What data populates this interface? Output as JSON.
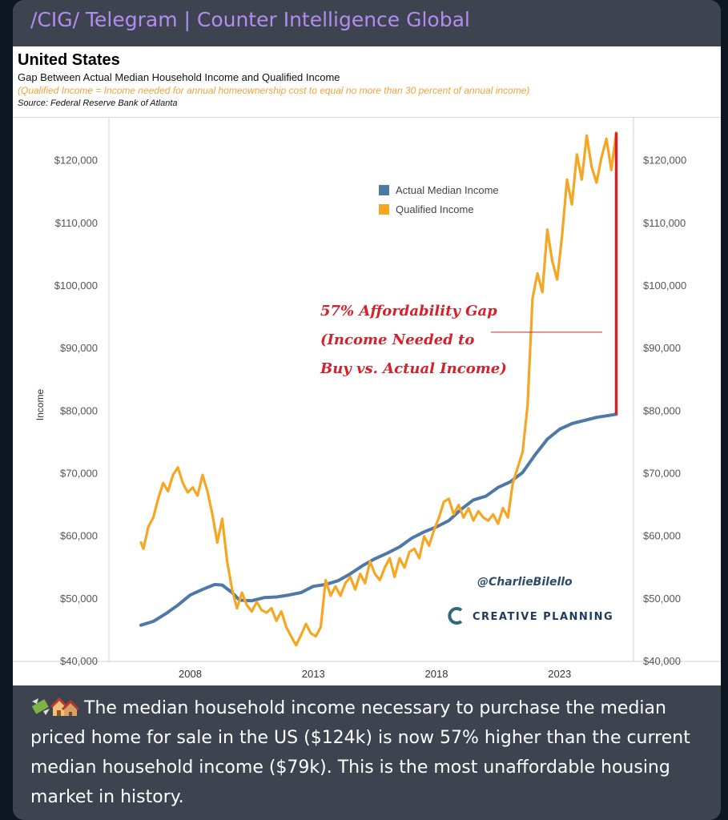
{
  "channel": {
    "name": "/CIG/ Telegram | Counter Intelligence Global"
  },
  "chart_header": {
    "title": "United States",
    "subtitle": "Gap Between Actual Median Household Income and Qualified Income",
    "definition": "(Qualified Income = Income needed for annual homeownership cost to equal no more than 30 percent of annual income)",
    "source": "Source: Federal Reserve Bank of Atlanta"
  },
  "annotation": {
    "lines": [
      "57% Affordability Gap",
      "(Income Needed to",
      "Buy vs. Actual Income)"
    ],
    "color": "#d6202a"
  },
  "watermark": {
    "handle": "@CharlieBilello",
    "brand": "CREATIVE PLANNING"
  },
  "caption": {
    "emoji_icons": [
      "money-with-wings-icon",
      "houses-icon"
    ],
    "text": "The median household income necessary to purchase the median priced home for sale in the US ($124k) is now 57% higher than the current median household income ($79k). This is the most unaffordable housing market in history."
  },
  "chart_data": {
    "type": "line",
    "ylabel": "Income",
    "xlabel": "",
    "ylim": [
      40000,
      127000
    ],
    "xlim": [
      2004.7,
      2026.0
    ],
    "y_ticks": [
      40000,
      50000,
      60000,
      70000,
      80000,
      90000,
      100000,
      110000,
      120000
    ],
    "y_tick_labels": [
      "$40,000",
      "$50,000",
      "$60,000",
      "$70,000",
      "$80,000",
      "$90,000",
      "$100,000",
      "$110,000",
      "$120,000"
    ],
    "x_ticks": [
      2008,
      2013,
      2018,
      2023
    ],
    "x_tick_labels": [
      "2008",
      "2013",
      "2018",
      "2023"
    ],
    "legend_position": "top-center",
    "grid": false,
    "series": [
      {
        "name": "Actual Median Income",
        "color": "#4e79a7",
        "points": [
          [
            2006.0,
            45800
          ],
          [
            2006.5,
            46400
          ],
          [
            2007.0,
            47600
          ],
          [
            2007.5,
            49000
          ],
          [
            2008.0,
            50600
          ],
          [
            2008.5,
            51500
          ],
          [
            2009.0,
            52300
          ],
          [
            2009.3,
            52200
          ],
          [
            2009.7,
            51000
          ],
          [
            2010.0,
            49800
          ],
          [
            2010.5,
            49700
          ],
          [
            2011.0,
            50200
          ],
          [
            2011.5,
            50300
          ],
          [
            2012.0,
            50600
          ],
          [
            2012.5,
            51000
          ],
          [
            2013.0,
            52000
          ],
          [
            2013.5,
            52300
          ],
          [
            2014.0,
            52900
          ],
          [
            2014.5,
            54000
          ],
          [
            2015.0,
            55300
          ],
          [
            2015.5,
            56400
          ],
          [
            2016.0,
            57300
          ],
          [
            2016.5,
            58300
          ],
          [
            2017.0,
            59700
          ],
          [
            2017.5,
            60700
          ],
          [
            2018.0,
            61500
          ],
          [
            2018.5,
            62500
          ],
          [
            2019.0,
            64300
          ],
          [
            2019.5,
            65800
          ],
          [
            2020.0,
            66400
          ],
          [
            2020.5,
            67800
          ],
          [
            2021.0,
            68700
          ],
          [
            2021.5,
            70200
          ],
          [
            2022.0,
            73000
          ],
          [
            2022.5,
            75500
          ],
          [
            2023.0,
            77100
          ],
          [
            2023.5,
            78000
          ],
          [
            2024.0,
            78500
          ],
          [
            2024.5,
            79000
          ],
          [
            2025.0,
            79300
          ],
          [
            2025.3,
            79500
          ]
        ]
      },
      {
        "name": "Qualified Income",
        "color": "#f5a623",
        "points": [
          [
            2006.0,
            59000
          ],
          [
            2006.1,
            58000
          ],
          [
            2006.3,
            61500
          ],
          [
            2006.5,
            63000
          ],
          [
            2006.7,
            66000
          ],
          [
            2006.9,
            68500
          ],
          [
            2007.1,
            67200
          ],
          [
            2007.3,
            69800
          ],
          [
            2007.5,
            71000
          ],
          [
            2007.7,
            68500
          ],
          [
            2007.9,
            67000
          ],
          [
            2008.1,
            67800
          ],
          [
            2008.3,
            66500
          ],
          [
            2008.5,
            69800
          ],
          [
            2008.7,
            67200
          ],
          [
            2008.9,
            63500
          ],
          [
            2009.1,
            59000
          ],
          [
            2009.3,
            62800
          ],
          [
            2009.5,
            56000
          ],
          [
            2009.7,
            51500
          ],
          [
            2009.9,
            48500
          ],
          [
            2010.1,
            51000
          ],
          [
            2010.3,
            49000
          ],
          [
            2010.5,
            48000
          ],
          [
            2010.7,
            49500
          ],
          [
            2010.9,
            48200
          ],
          [
            2011.1,
            47800
          ],
          [
            2011.3,
            48500
          ],
          [
            2011.5,
            46500
          ],
          [
            2011.7,
            48000
          ],
          [
            2011.9,
            45500
          ],
          [
            2012.1,
            44000
          ],
          [
            2012.3,
            42600
          ],
          [
            2012.5,
            44200
          ],
          [
            2012.7,
            46000
          ],
          [
            2012.9,
            44500
          ],
          [
            2013.1,
            44000
          ],
          [
            2013.3,
            45500
          ],
          [
            2013.5,
            53000
          ],
          [
            2013.7,
            50500
          ],
          [
            2013.9,
            52000
          ],
          [
            2014.1,
            50500
          ],
          [
            2014.3,
            52500
          ],
          [
            2014.5,
            53500
          ],
          [
            2014.7,
            51500
          ],
          [
            2014.9,
            54000
          ],
          [
            2015.1,
            52500
          ],
          [
            2015.3,
            56000
          ],
          [
            2015.5,
            54000
          ],
          [
            2015.7,
            53000
          ],
          [
            2015.9,
            55000
          ],
          [
            2016.1,
            56500
          ],
          [
            2016.3,
            53500
          ],
          [
            2016.5,
            56500
          ],
          [
            2016.7,
            55000
          ],
          [
            2016.9,
            57500
          ],
          [
            2017.1,
            58000
          ],
          [
            2017.3,
            56500
          ],
          [
            2017.5,
            60000
          ],
          [
            2017.7,
            58500
          ],
          [
            2017.9,
            61000
          ],
          [
            2018.1,
            63000
          ],
          [
            2018.3,
            65500
          ],
          [
            2018.5,
            66000
          ],
          [
            2018.7,
            63500
          ],
          [
            2018.9,
            65000
          ],
          [
            2019.1,
            63000
          ],
          [
            2019.3,
            64500
          ],
          [
            2019.5,
            62500
          ],
          [
            2019.7,
            64000
          ],
          [
            2019.9,
            63000
          ],
          [
            2020.1,
            62500
          ],
          [
            2020.3,
            63500
          ],
          [
            2020.5,
            62000
          ],
          [
            2020.7,
            64500
          ],
          [
            2020.9,
            63000
          ],
          [
            2021.1,
            68500
          ],
          [
            2021.3,
            71000
          ],
          [
            2021.5,
            73500
          ],
          [
            2021.7,
            81000
          ],
          [
            2021.9,
            98000
          ],
          [
            2022.1,
            102000
          ],
          [
            2022.3,
            99000
          ],
          [
            2022.5,
            109000
          ],
          [
            2022.7,
            104000
          ],
          [
            2022.9,
            101000
          ],
          [
            2023.1,
            108000
          ],
          [
            2023.3,
            117000
          ],
          [
            2023.5,
            113000
          ],
          [
            2023.7,
            121000
          ],
          [
            2023.9,
            117000
          ],
          [
            2024.1,
            124000
          ],
          [
            2024.3,
            119000
          ],
          [
            2024.5,
            116500
          ],
          [
            2024.7,
            120500
          ],
          [
            2024.9,
            123500
          ],
          [
            2025.1,
            118500
          ],
          [
            2025.3,
            124500
          ]
        ]
      }
    ]
  }
}
